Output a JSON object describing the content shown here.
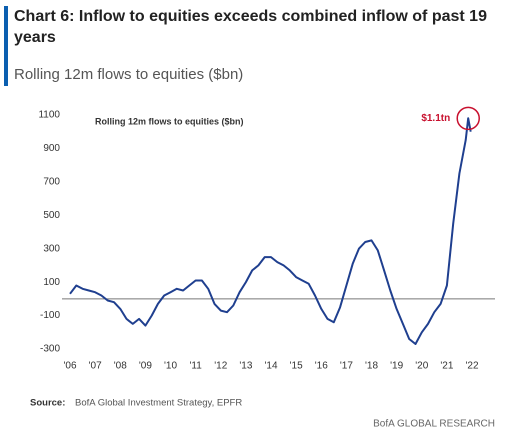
{
  "chart_data": {
    "type": "line",
    "title": "Chart 6: Inflow to equities exceeds combined inflow of past 19 years",
    "subtitle": "Rolling 12m flows to equities ($bn)",
    "inner_title": "Rolling 12m flows to equities ($bn)",
    "annotation": "$1.1tn",
    "source_label": "Source:",
    "source": "BofA Global Investment Strategy, EPFR",
    "footer": "BofA GLOBAL RESEARCH",
    "x": [
      2006.0,
      2006.25,
      2006.5,
      2006.75,
      2007.0,
      2007.25,
      2007.5,
      2007.75,
      2008.0,
      2008.25,
      2008.5,
      2008.75,
      2009.0,
      2009.25,
      2009.5,
      2009.75,
      2010.0,
      2010.25,
      2010.5,
      2010.75,
      2011.0,
      2011.25,
      2011.5,
      2011.75,
      2012.0,
      2012.25,
      2012.5,
      2012.75,
      2013.0,
      2013.25,
      2013.5,
      2013.75,
      2014.0,
      2014.25,
      2014.5,
      2014.75,
      2015.0,
      2015.25,
      2015.5,
      2015.75,
      2016.0,
      2016.25,
      2016.5,
      2016.75,
      2017.0,
      2017.25,
      2017.5,
      2017.75,
      2018.0,
      2018.25,
      2018.5,
      2018.75,
      2019.0,
      2019.25,
      2019.5,
      2019.75,
      2020.0,
      2020.25,
      2020.5,
      2020.75,
      2021.0,
      2021.25,
      2021.5,
      2021.75,
      2021.85,
      2021.95
    ],
    "series": [
      {
        "name": "Rolling 12m flows to equities ($bn)",
        "color": "#1f3f8f",
        "values": [
          30,
          80,
          60,
          50,
          40,
          20,
          -10,
          -20,
          -60,
          -120,
          -150,
          -120,
          -160,
          -100,
          -30,
          20,
          40,
          60,
          50,
          80,
          110,
          110,
          60,
          -30,
          -70,
          -80,
          -40,
          40,
          100,
          170,
          200,
          250,
          250,
          220,
          200,
          170,
          130,
          110,
          90,
          20,
          -60,
          -120,
          -140,
          -50,
          80,
          210,
          300,
          340,
          350,
          290,
          170,
          50,
          -60,
          -150,
          -240,
          -270,
          -200,
          -150,
          -80,
          -30,
          80,
          450,
          750,
          950,
          1080,
          1000
        ]
      }
    ],
    "xlim": [
      2006,
      2022.1
    ],
    "xticks": [
      {
        "value": 2006,
        "label": "'06"
      },
      {
        "value": 2007,
        "label": "'07"
      },
      {
        "value": 2008,
        "label": "'08"
      },
      {
        "value": 2009,
        "label": "'09"
      },
      {
        "value": 2010,
        "label": "'10"
      },
      {
        "value": 2011,
        "label": "'11"
      },
      {
        "value": 2012,
        "label": "'12"
      },
      {
        "value": 2013,
        "label": "'13"
      },
      {
        "value": 2014,
        "label": "'14"
      },
      {
        "value": 2015,
        "label": "'15"
      },
      {
        "value": 2016,
        "label": "'16"
      },
      {
        "value": 2017,
        "label": "'17"
      },
      {
        "value": 2018,
        "label": "'18"
      },
      {
        "value": 2019,
        "label": "'19"
      },
      {
        "value": 2020,
        "label": "'20"
      },
      {
        "value": 2021,
        "label": "'21"
      },
      {
        "value": 2022,
        "label": "'22"
      }
    ],
    "ylim": [
      -300,
      1100
    ],
    "yticks": [
      1100,
      900,
      700,
      500,
      300,
      100,
      -100,
      -300
    ],
    "zero_line": true,
    "annotation_color": "#c8102e"
  }
}
